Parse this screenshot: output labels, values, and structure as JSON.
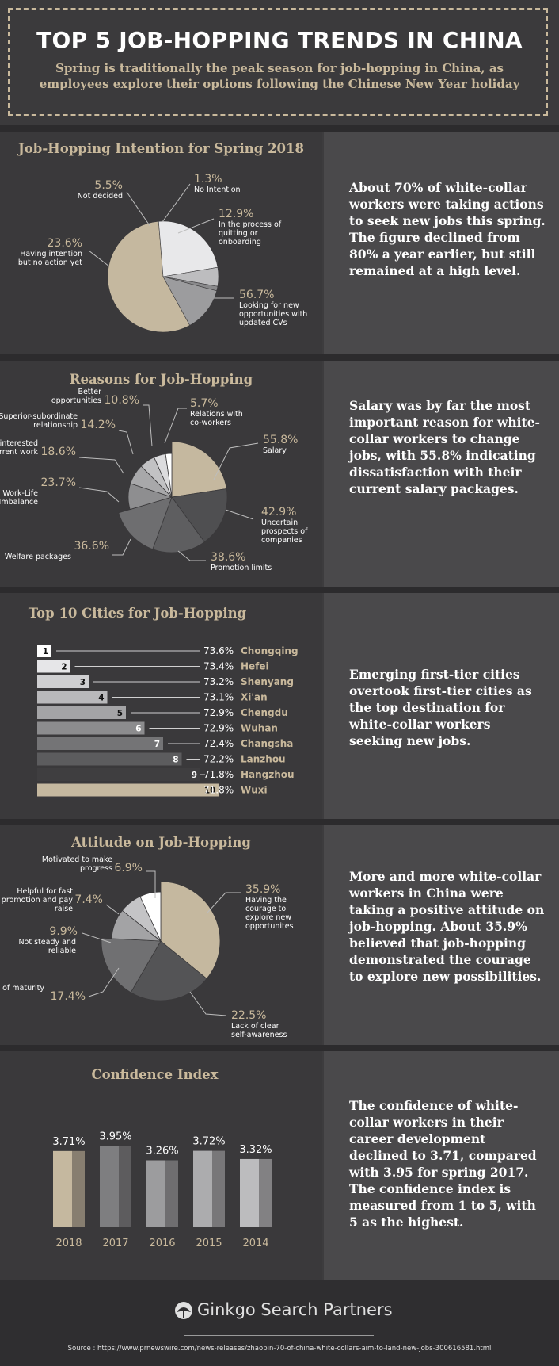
{
  "header": {
    "title": "TOP 5 JOB-HOPPING TRENDS IN CHINA",
    "subtitle": "Spring is traditionally the peak season for job-hopping in China, as employees explore their options following the Chinese New Year holiday"
  },
  "sections": {
    "intention": {
      "title": "Job-Hopping Intention for Spring 2018",
      "text": "About 70% of white-collar workers were taking actions to seek new jobs this spring. The figure declined from 80% a year earlier, but still remained at a high level."
    },
    "reasons": {
      "title": "Reasons for Job-Hopping",
      "text": "Salary was by far the most important reason for white-collar workers to change jobs, with 55.8% indicating dissatisfaction with their current salary packages."
    },
    "cities": {
      "title": "Top 10 Cities for  Job-Hopping",
      "text": "Emerging first-tier cities overtook first-tier cities as the top destination for white-collar workers seeking new jobs."
    },
    "attitude": {
      "title": "Attitude on Job-Hopping",
      "text": "More and more white-collar workers in China were taking a positive attitude on job-hopping. About 35.9% believed that job-hopping demonstrated the courage to explore new possibilities."
    },
    "confidence": {
      "title": "Confidence Index",
      "text": "The confidence of white-collar workers in their career development declined to 3.71, compared with 3.95 for spring 2017. The confidence index is measured from 1 to 5, with 5 as the highest."
    }
  },
  "footer": {
    "logo_text": "Ginkgo Search Partners",
    "logo_icon": "ginkgo-leaf-icon",
    "source": "Source : https://www.prnewswire.com/news-releases/zhaopin-70-of-china-white-collars-aim-to-land-new-jobs-300616581.html"
  },
  "colors": {
    "accent_tan": "#c9b99c",
    "background": "#3d3c3e",
    "panel_right": "#4a494b",
    "text": "#ffffff"
  },
  "chart_data": [
    {
      "id": "intention",
      "type": "pie",
      "title": "Job-Hopping Intention for Spring 2018",
      "slices": [
        {
          "label": "Looking for new opportunities with updated CVs",
          "value": 56.7,
          "display": "56.7%",
          "color": "#c5b89f"
        },
        {
          "label": "Having intention but no action yet",
          "value": 23.6,
          "display": "23.6%",
          "color": "#e8e8ea"
        },
        {
          "label": "Not decided",
          "value": 5.5,
          "display": "5.5%",
          "color": "#bdbdbf"
        },
        {
          "label": "No Intention",
          "value": 1.3,
          "display": "1.3%",
          "color": "#8a8a8c"
        },
        {
          "label": "In the process of quitting or onboarding",
          "value": 12.9,
          "display": "12.9%",
          "color": "#9c9c9e"
        }
      ]
    },
    {
      "id": "reasons",
      "type": "pie",
      "title": "Reasons for Job-Hopping",
      "slices": [
        {
          "label": "Salary",
          "value": 55.8,
          "display": "55.8%",
          "color": "#c5b89f",
          "r": 70
        },
        {
          "label": "Uncertain prospects of companies",
          "value": 42.9,
          "display": "42.9%",
          "color": "#4f4f51",
          "r": 70
        },
        {
          "label": "Promotion limits",
          "value": 38.6,
          "display": "38.6%",
          "color": "#5e5e60",
          "r": 70
        },
        {
          "label": "Welfare packages",
          "value": 36.6,
          "display": "36.6%",
          "color": "#6e6e70",
          "r": 70
        },
        {
          "label": "Work-Life Imbalance",
          "value": 23.7,
          "display": "23.7%",
          "color": "#8e8e90",
          "r": 55
        },
        {
          "label": "Not interested in current work",
          "value": 18.6,
          "display": "18.6%",
          "color": "#a8a8aa",
          "r": 55
        },
        {
          "label": "Superior-subordinate relationship",
          "value": 14.2,
          "display": "14.2%",
          "color": "#c2c2c4",
          "r": 55
        },
        {
          "label": "Better opportunities",
          "value": 10.8,
          "display": "10.8%",
          "color": "#dcdcde",
          "r": 55
        },
        {
          "label": "Relations with co-workers",
          "value": 5.7,
          "display": "5.7%",
          "color": "#ffffff",
          "r": 55
        }
      ]
    },
    {
      "id": "cities",
      "type": "bar",
      "title": "Top 10 Cities for  Job-Hopping",
      "categories": [
        "Chongqing",
        "Hefei",
        "Shenyang",
        "Xi'an",
        "Chengdu",
        "Wuhan",
        "Changsha",
        "Lanzhou",
        "Hangzhou",
        "Wuxi"
      ],
      "ranks": [
        "1",
        "2",
        "3",
        "4",
        "5",
        "6",
        "7",
        "8",
        "9",
        "10"
      ],
      "values": [
        73.6,
        73.4,
        73.2,
        73.1,
        72.9,
        72.9,
        72.4,
        72.2,
        71.8,
        71.8
      ],
      "value_labels": [
        "73.6%",
        "73.4%",
        "73.2%",
        "73.1%",
        "72.9%",
        "72.9%",
        "72.4%",
        "72.2%",
        "71.8%",
        "71.8%"
      ]
    },
    {
      "id": "attitude",
      "type": "pie",
      "title": "Attitude on Job-Hopping",
      "slices": [
        {
          "label": "Having the courage to explore new opportunites",
          "value": 35.9,
          "display": "35.9%",
          "color": "#c5b89f"
        },
        {
          "label": "Lack of clear self-awareness",
          "value": 22.5,
          "display": "22.5%",
          "color": "#545456"
        },
        {
          "label": "Lack of maturity",
          "value": 17.4,
          "display": "17.4%",
          "color": "#707072"
        },
        {
          "label": "Not steady and reliable",
          "value": 9.9,
          "display": "9.9%",
          "color": "#a3a3a5"
        },
        {
          "label": "Helpful for fast promotion and pay raise",
          "value": 7.4,
          "display": "7.4%",
          "color": "#c4c4c6"
        },
        {
          "label": "Motivated to make progress",
          "value": 6.9,
          "display": "6.9%",
          "color": "#ffffff"
        }
      ]
    },
    {
      "id": "confidence",
      "type": "bar",
      "title": "Confidence Index",
      "categories": [
        "2018",
        "2017",
        "2016",
        "2015",
        "2014"
      ],
      "values": [
        3.71,
        3.95,
        3.26,
        3.72,
        3.32
      ],
      "value_labels": [
        "3.71%",
        "3.95%",
        "3.26%",
        "3.72%",
        "3.32%"
      ],
      "colors": [
        "#c5b89f",
        "#7e7e80",
        "#9c9c9e",
        "#acacae",
        "#bcbcbe"
      ],
      "ylim": [
        0,
        5
      ]
    }
  ]
}
